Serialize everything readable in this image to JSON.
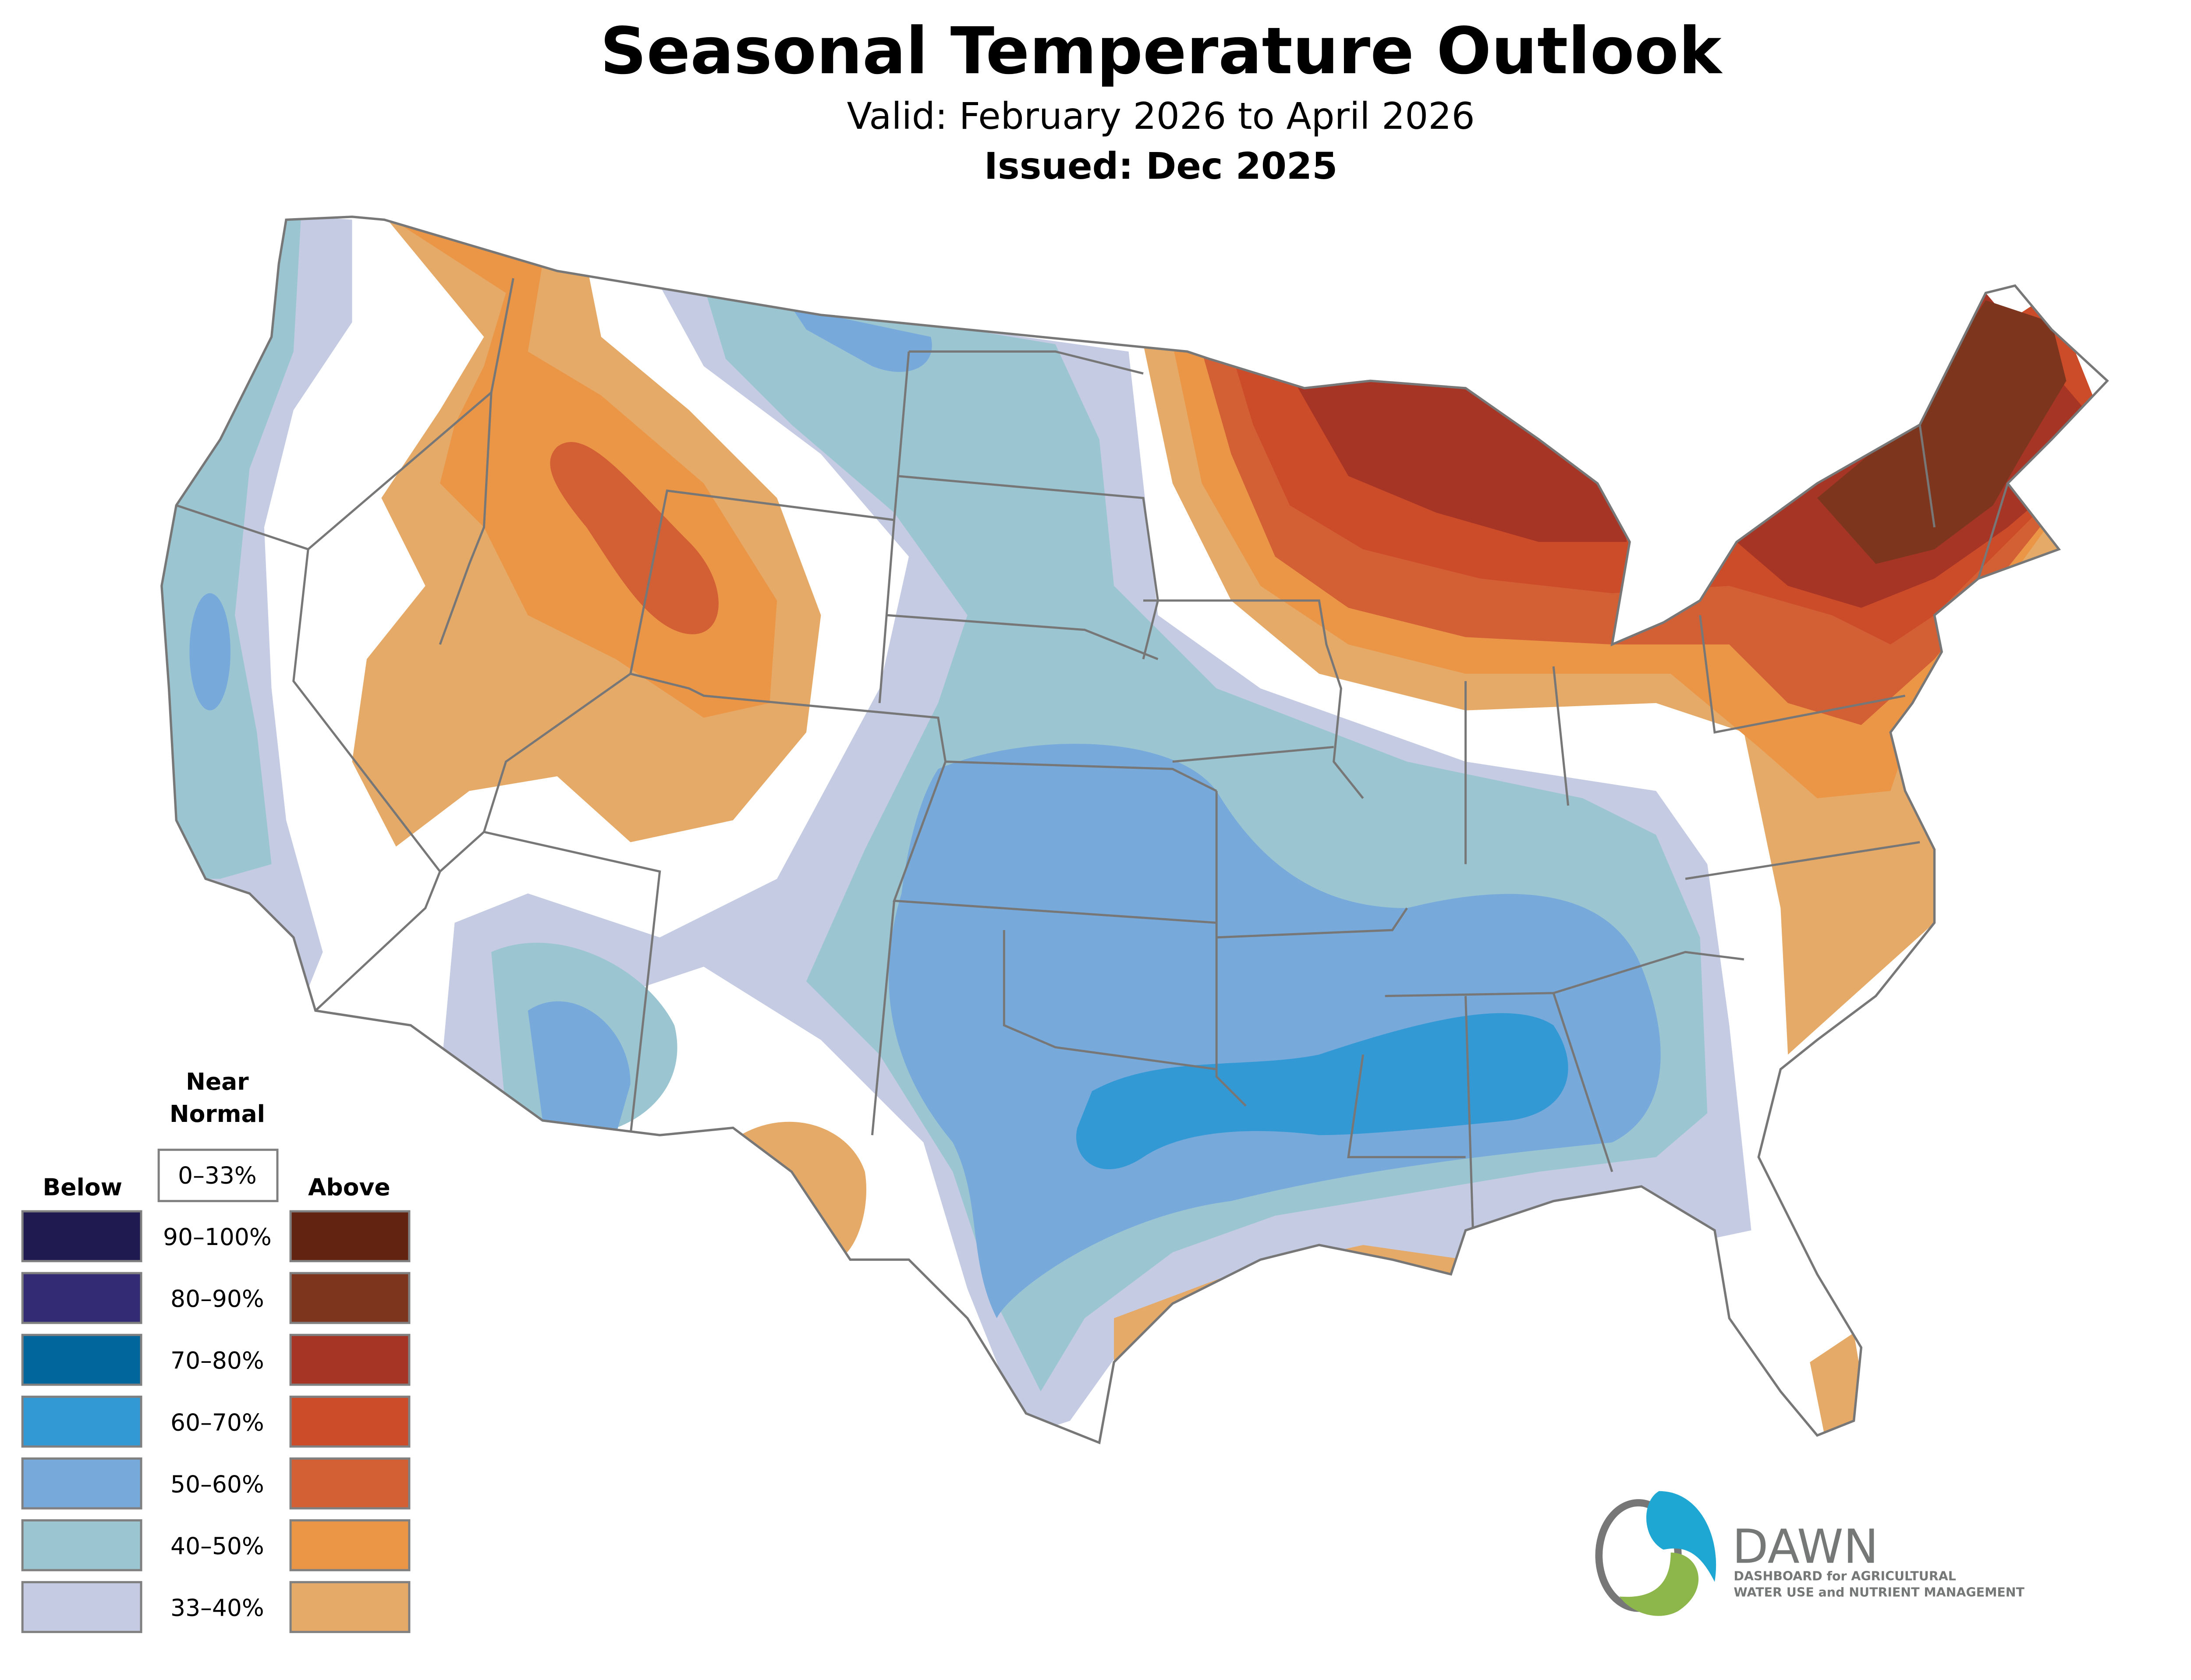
{
  "header": {
    "title": "Seasonal Temperature Outlook",
    "valid": "Valid: February 2026 to April 2026",
    "issued": "Issued: Dec 2025"
  },
  "legend": {
    "near_normal_line1": "Near",
    "near_normal_line2": "Normal",
    "near_normal_range": "0–33%",
    "below_label": "Below",
    "above_label": "Above",
    "rows": [
      {
        "range": "90–100%",
        "below_color": "#1f1a4f",
        "above_color": "#622411"
      },
      {
        "range": "80–90%",
        "below_color": "#332c74",
        "above_color": "#7e351e"
      },
      {
        "range": "70–80%",
        "below_color": "#00669c",
        "above_color": "#a63526"
      },
      {
        "range": "60–70%",
        "below_color": "#3399d4",
        "above_color": "#cc4b29"
      },
      {
        "range": "50–60%",
        "below_color": "#77aadb",
        "above_color": "#d35f35"
      },
      {
        "range": "40–50%",
        "below_color": "#9bc5d1",
        "above_color": "#eb9646"
      },
      {
        "range": "33–40%",
        "below_color": "#c4cbe3",
        "above_color": "#e6aa68"
      }
    ]
  },
  "logo": {
    "name": "DAWN",
    "tagline_line1": "DASHBOARD for AGRICULTURAL",
    "tagline_line2": "WATER USE and NUTRIENT MANAGEMENT"
  }
}
